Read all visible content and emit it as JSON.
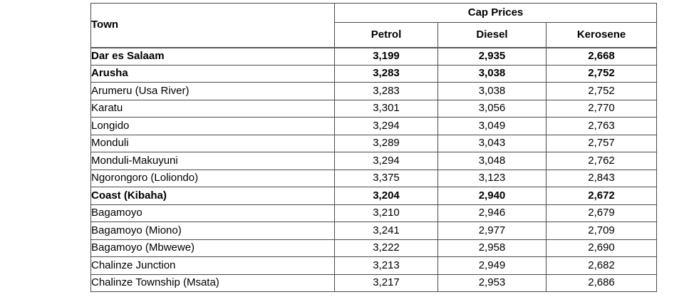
{
  "table": {
    "town_header": "Town",
    "group_header": "Cap Prices",
    "columns": [
      "Petrol",
      "Diesel",
      "Kerosene"
    ],
    "rows": [
      {
        "town": "Dar es Salaam",
        "petrol": "3,199",
        "diesel": "2,935",
        "kerosene": "2,668",
        "bold": true
      },
      {
        "town": "Arusha",
        "petrol": "3,283",
        "diesel": "3,038",
        "kerosene": "2,752",
        "bold": true
      },
      {
        "town": "Arumeru (Usa River)",
        "petrol": "3,283",
        "diesel": "3,038",
        "kerosene": "2,752",
        "bold": false
      },
      {
        "town": "Karatu",
        "petrol": "3,301",
        "diesel": "3,056",
        "kerosene": "2,770",
        "bold": false
      },
      {
        "town": "Longido",
        "petrol": "3,294",
        "diesel": "3,049",
        "kerosene": "2,763",
        "bold": false
      },
      {
        "town": "Monduli",
        "petrol": "3,289",
        "diesel": "3,043",
        "kerosene": "2,757",
        "bold": false
      },
      {
        "town": "Monduli-Makuyuni",
        "petrol": "3,294",
        "diesel": "3,048",
        "kerosene": "2,762",
        "bold": false
      },
      {
        "town": "Ngorongoro (Loliondo)",
        "petrol": "3,375",
        "diesel": "3,123",
        "kerosene": "2,843",
        "bold": false
      },
      {
        "town": "Coast (Kibaha)",
        "petrol": "3,204",
        "diesel": "2,940",
        "kerosene": "2,672",
        "bold": true
      },
      {
        "town": "Bagamoyo",
        "petrol": "3,210",
        "diesel": "2,946",
        "kerosene": "2,679",
        "bold": false
      },
      {
        "town": "Bagamoyo (Miono)",
        "petrol": "3,241",
        "diesel": "2,977",
        "kerosene": "2,709",
        "bold": false
      },
      {
        "town": "Bagamoyo (Mbwewe)",
        "petrol": "3,222",
        "diesel": "2,958",
        "kerosene": "2,690",
        "bold": false
      },
      {
        "town": "Chalinze Junction",
        "petrol": "3,213",
        "diesel": "2,949",
        "kerosene": "2,682",
        "bold": false
      },
      {
        "town": "Chalinze Township (Msata)",
        "petrol": "3,217",
        "diesel": "2,953",
        "kerosene": "2,686",
        "bold": false
      }
    ]
  },
  "colors": {
    "border": "#4a4a4a",
    "text": "#000000",
    "background": "#ffffff"
  }
}
